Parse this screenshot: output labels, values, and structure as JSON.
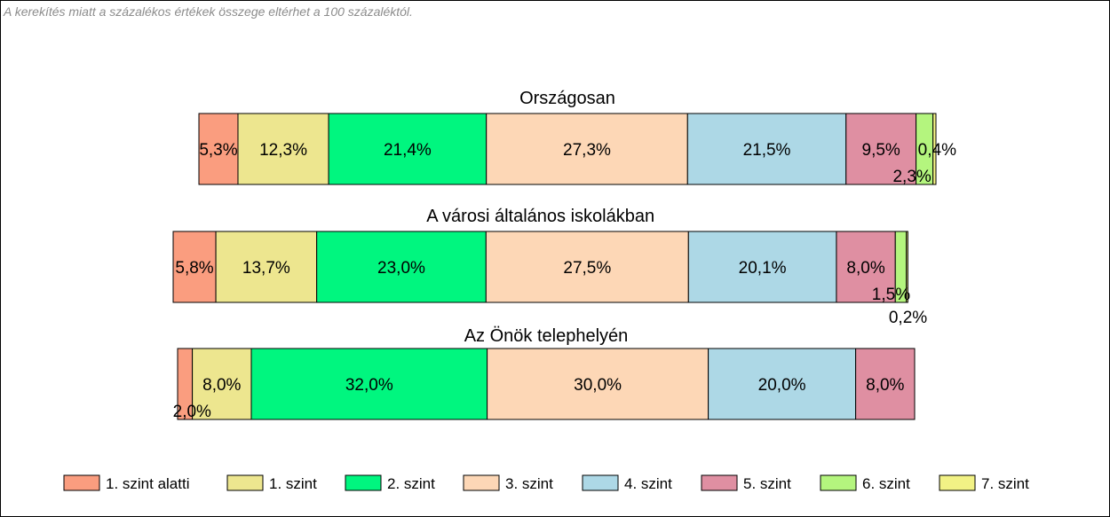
{
  "note": "A kerekítés miatt a  százalékos értékek összege eltérhet a 100 százaléktól.",
  "chart_data": {
    "type": "bar",
    "orientation": "horizontal",
    "stacked": true,
    "legend_position": "bottom",
    "grid": false,
    "categories": [
      "Országosan",
      "A városi általános iskolákban",
      "Az Önök telephelyén"
    ],
    "series": [
      {
        "name": "1. szint alatti",
        "color": "#fa9d7f",
        "values": [
          5.3,
          5.8,
          2.0
        ],
        "labels": [
          "5,3%",
          "5,8%",
          "2,0%"
        ]
      },
      {
        "name": "1. szint",
        "color": "#ede68f",
        "values": [
          12.3,
          13.7,
          8.0
        ],
        "labels": [
          "12,3%",
          "13,7%",
          "8,0%"
        ]
      },
      {
        "name": "2. szint",
        "color": "#00f67f",
        "values": [
          21.4,
          23.0,
          32.0
        ],
        "labels": [
          "21,4%",
          "23,0%",
          "32,0%"
        ]
      },
      {
        "name": "3. szint",
        "color": "#fdd7b6",
        "values": [
          27.3,
          27.5,
          30.0
        ],
        "labels": [
          "27,3%",
          "27,5%",
          "30,0%"
        ]
      },
      {
        "name": "4. szint",
        "color": "#add8e6",
        "values": [
          21.5,
          20.1,
          20.0
        ],
        "labels": [
          "21,5%",
          "20,1%",
          "20,0%"
        ]
      },
      {
        "name": "5. szint",
        "color": "#df8fa2",
        "values": [
          9.5,
          8.0,
          8.0
        ],
        "labels": [
          "9,5%",
          "8,0%",
          "8,0%"
        ]
      },
      {
        "name": "6. szint",
        "color": "#b4f57e",
        "values": [
          2.3,
          1.5,
          0
        ],
        "labels": [
          "2,3%",
          "1,5%",
          ""
        ]
      },
      {
        "name": "7. szint",
        "color": "#f2f285",
        "values": [
          0.4,
          0.2,
          0
        ],
        "labels": [
          "0,4%",
          "0,2%",
          ""
        ]
      }
    ]
  }
}
